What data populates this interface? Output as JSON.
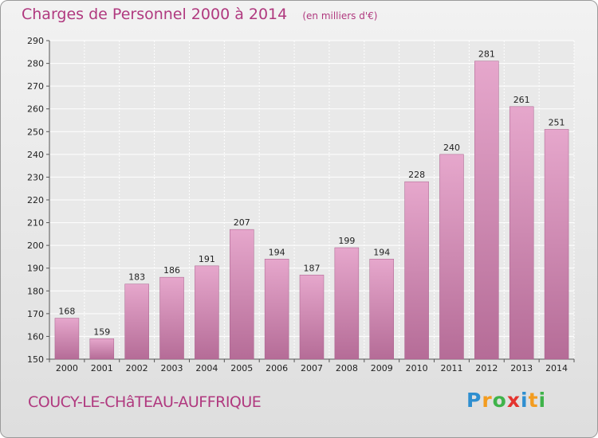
{
  "header": {
    "title": "Charges de Personnel 2000 à 2014",
    "subtitle": "(en milliers d'€)"
  },
  "footer": {
    "commune": "COUCY-LE-CHâTEAU-AUFFRIQUE",
    "logo": [
      "P",
      "r",
      "o",
      "x",
      "i",
      "t",
      "i"
    ]
  },
  "colors": {
    "accent": "#b0397f",
    "bar_top": "#e6a7cc",
    "bar_bottom": "#b56c97",
    "logo": [
      "#2f8fd0",
      "#f39c1f",
      "#3fb34a",
      "#e4342f",
      "#2f8fd0",
      "#f39c1f",
      "#3fb34a"
    ]
  },
  "chart_data": {
    "type": "bar",
    "title": "Charges de Personnel 2000 à 2014",
    "subtitle": "(en milliers d'€)",
    "categories": [
      "2000",
      "2001",
      "2002",
      "2003",
      "2004",
      "2005",
      "2006",
      "2007",
      "2008",
      "2009",
      "2010",
      "2011",
      "2012",
      "2013",
      "2014"
    ],
    "values": [
      168,
      159,
      183,
      186,
      191,
      207,
      194,
      187,
      199,
      194,
      228,
      240,
      281,
      261,
      251
    ],
    "ylim": [
      150,
      290
    ],
    "yticks": [
      150,
      160,
      170,
      180,
      190,
      200,
      210,
      220,
      230,
      240,
      250,
      260,
      270,
      280,
      290
    ],
    "grid": true,
    "data_labels": true
  }
}
